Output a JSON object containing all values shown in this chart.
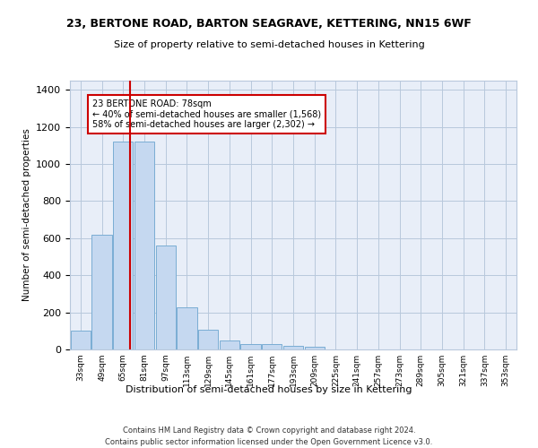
{
  "title": "23, BERTONE ROAD, BARTON SEAGRAVE, KETTERING, NN15 6WF",
  "subtitle": "Size of property relative to semi-detached houses in Kettering",
  "xlabel": "Distribution of semi-detached houses by size in Kettering",
  "ylabel": "Number of semi-detached properties",
  "bin_labels": [
    "33sqm",
    "49sqm",
    "65sqm",
    "81sqm",
    "97sqm",
    "113sqm",
    "129sqm",
    "145sqm",
    "161sqm",
    "177sqm",
    "193sqm",
    "209sqm",
    "225sqm",
    "241sqm",
    "257sqm",
    "273sqm",
    "289sqm",
    "305sqm",
    "321sqm",
    "337sqm",
    "353sqm"
  ],
  "bin_edges": [
    33,
    49,
    65,
    81,
    97,
    113,
    129,
    145,
    161,
    177,
    193,
    209,
    225,
    241,
    257,
    273,
    289,
    305,
    321,
    337,
    353
  ],
  "bar_heights": [
    100,
    620,
    1120,
    1120,
    560,
    225,
    105,
    50,
    30,
    27,
    17,
    15,
    0,
    0,
    0,
    0,
    0,
    0,
    0,
    0
  ],
  "bar_color": "#c5d8f0",
  "bar_edge_color": "#7aadd4",
  "property_value": 78,
  "property_line_color": "#cc0000",
  "annotation_text": "23 BERTONE ROAD: 78sqm\n← 40% of semi-detached houses are smaller (1,568)\n58% of semi-detached houses are larger (2,302) →",
  "annotation_box_color": "#ffffff",
  "annotation_box_edge_color": "#cc0000",
  "ylim": [
    0,
    1450
  ],
  "background_color": "#e8eef8",
  "footer_line1": "Contains HM Land Registry data © Crown copyright and database right 2024.",
  "footer_line2": "Contains public sector information licensed under the Open Government Licence v3.0."
}
